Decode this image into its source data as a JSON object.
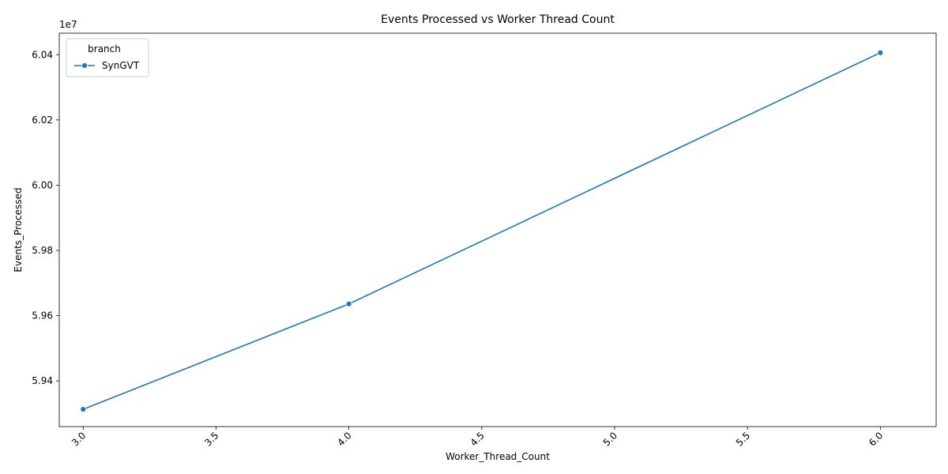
{
  "chart_data": {
    "type": "line",
    "title": "Events Processed vs Worker Thread Count",
    "xlabel": "Worker_Thread_Count",
    "ylabel": "Events_Processed",
    "y_offset_label": "1e7",
    "xlim": [
      2.91,
      6.21
    ],
    "ylim": [
      59.26,
      60.466
    ],
    "x_ticks": [
      3.0,
      3.5,
      4.0,
      4.5,
      5.0,
      5.5,
      6.0
    ],
    "x_tick_labels": [
      "3.0",
      "3.5",
      "4.0",
      "4.5",
      "5.0",
      "5.5",
      "6.0"
    ],
    "y_ticks": [
      59.4,
      59.6,
      59.8,
      60.0,
      60.2,
      60.4
    ],
    "y_tick_labels": [
      "5.94",
      "5.96",
      "5.98",
      "6.00",
      "6.02",
      "6.04"
    ],
    "x_tick_rotation": "45",
    "grid": false,
    "legend": {
      "title": "branch",
      "placement": "top-left"
    },
    "series": [
      {
        "name": "SynGVT",
        "color": "#1f77b4",
        "marker": "circle",
        "x": [
          3,
          4,
          6
        ],
        "y": [
          59.313,
          59.636,
          60.406
        ]
      }
    ]
  }
}
